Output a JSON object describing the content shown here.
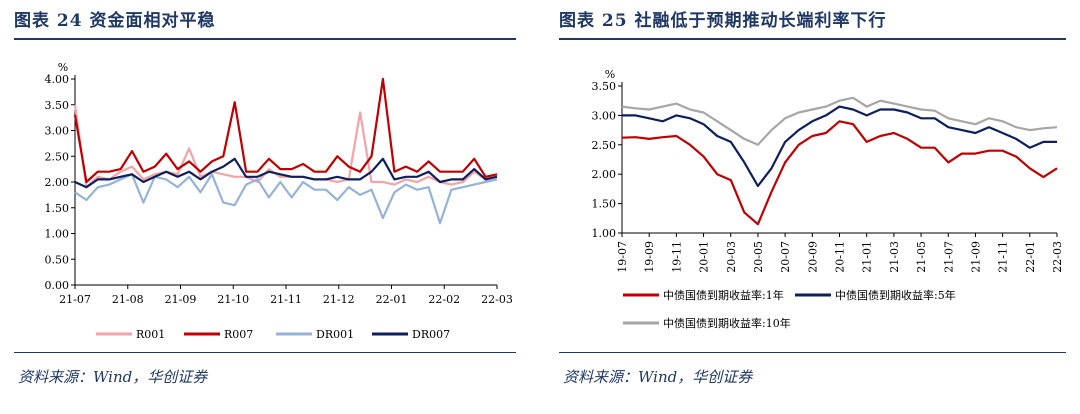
{
  "panels": {
    "left": {
      "title": "图表 24   资金面相对平稳",
      "source": "资料来源：Wind，华创证券"
    },
    "right": {
      "title": "图表 25   社融低于预期推动长端利率下行",
      "source": "资料来源：Wind，华创证券"
    }
  },
  "chart_data": [
    {
      "type": "line",
      "title": "资金面相对平稳",
      "ylabel": "%",
      "ylim": [
        0,
        4
      ],
      "yticks": [
        "0.00",
        "0.50",
        "1.00",
        "1.50",
        "2.00",
        "2.50",
        "3.00",
        "3.50",
        "4.00"
      ],
      "xticks": [
        "21-07",
        "21-08",
        "21-09",
        "21-10",
        "21-11",
        "21-12",
        "22-01",
        "22-02",
        "22-03"
      ],
      "x": [
        "2021-07-01",
        "2021-07-08",
        "2021-07-15",
        "2021-07-22",
        "2021-07-29",
        "2021-08-05",
        "2021-08-12",
        "2021-08-19",
        "2021-08-26",
        "2021-09-02",
        "2021-09-09",
        "2021-09-16",
        "2021-09-23",
        "2021-09-30",
        "2021-10-08",
        "2021-10-15",
        "2021-10-22",
        "2021-10-29",
        "2021-11-05",
        "2021-11-12",
        "2021-11-19",
        "2021-11-26",
        "2021-12-03",
        "2021-12-10",
        "2021-12-17",
        "2021-12-24",
        "2021-12-31",
        "2022-01-07",
        "2022-01-14",
        "2022-01-21",
        "2022-01-28",
        "2022-02-04",
        "2022-02-11",
        "2022-02-18",
        "2022-02-25",
        "2022-03-04",
        "2022-03-11",
        "2022-03-18"
      ],
      "legend_position": "bottom",
      "grid": false,
      "series": [
        {
          "name": "R001",
          "color": "#f4a3a6",
          "values": [
            3.5,
            1.9,
            2.1,
            2.05,
            2.2,
            2.3,
            2.05,
            2.15,
            2.2,
            2.15,
            2.65,
            2.1,
            2.2,
            2.15,
            2.1,
            2.1,
            2.0,
            2.25,
            2.1,
            2.1,
            2.1,
            2.05,
            2.05,
            2.0,
            2.05,
            3.35,
            2.0,
            2.0,
            1.95,
            2.05,
            2.0,
            2.1,
            2.0,
            1.95,
            2.0,
            2.2,
            2.05,
            2.15
          ]
        },
        {
          "name": "R007",
          "color": "#c00000",
          "values": [
            3.3,
            2.0,
            2.2,
            2.2,
            2.25,
            2.6,
            2.2,
            2.3,
            2.55,
            2.25,
            2.4,
            2.2,
            2.4,
            2.5,
            3.55,
            2.2,
            2.2,
            2.45,
            2.25,
            2.25,
            2.35,
            2.2,
            2.2,
            2.5,
            2.3,
            2.2,
            2.5,
            4.0,
            2.2,
            2.3,
            2.2,
            2.4,
            2.2,
            2.2,
            2.2,
            2.45,
            2.1,
            2.15
          ]
        },
        {
          "name": "DR001",
          "color": "#95b3d7",
          "values": [
            1.8,
            1.65,
            1.9,
            1.95,
            2.05,
            2.15,
            1.6,
            2.1,
            2.05,
            1.9,
            2.1,
            1.8,
            2.15,
            1.6,
            1.55,
            1.95,
            2.05,
            1.7,
            2.0,
            1.7,
            2.0,
            1.85,
            1.85,
            1.65,
            1.9,
            1.75,
            1.85,
            1.3,
            1.8,
            1.95,
            1.85,
            1.9,
            1.2,
            1.85,
            1.9,
            1.95,
            2.0,
            2.05
          ]
        },
        {
          "name": "DR007",
          "color": "#0d1f5c",
          "values": [
            2.0,
            1.9,
            2.05,
            2.05,
            2.1,
            2.15,
            2.0,
            2.1,
            2.2,
            2.1,
            2.2,
            2.05,
            2.2,
            2.3,
            2.45,
            2.1,
            2.1,
            2.2,
            2.15,
            2.1,
            2.1,
            2.05,
            2.05,
            2.1,
            2.05,
            2.05,
            2.2,
            2.45,
            2.05,
            2.1,
            2.1,
            2.2,
            2.0,
            2.05,
            2.05,
            2.25,
            2.05,
            2.1
          ]
        }
      ]
    },
    {
      "type": "line",
      "title": "社融低于预期推动长端利率下行",
      "ylabel": "%",
      "ylim": [
        1,
        3.5
      ],
      "yticks": [
        "1.00",
        "1.50",
        "2.00",
        "2.50",
        "3.00",
        "3.50"
      ],
      "xticks": [
        "19-07",
        "19-09",
        "19-11",
        "20-01",
        "20-03",
        "20-05",
        "20-07",
        "20-09",
        "20-11",
        "21-01",
        "21-03",
        "21-05",
        "21-07",
        "21-09",
        "21-11",
        "22-01",
        "22-03"
      ],
      "x": [
        "2019-07",
        "2019-08",
        "2019-09",
        "2019-10",
        "2019-11",
        "2019-12",
        "2020-01",
        "2020-02",
        "2020-03",
        "2020-04",
        "2020-05",
        "2020-06",
        "2020-07",
        "2020-08",
        "2020-09",
        "2020-10",
        "2020-11",
        "2020-12",
        "2021-01",
        "2021-02",
        "2021-03",
        "2021-04",
        "2021-05",
        "2021-06",
        "2021-07",
        "2021-08",
        "2021-09",
        "2021-10",
        "2021-11",
        "2021-12",
        "2022-01",
        "2022-02",
        "2022-03"
      ],
      "legend_position": "bottom",
      "grid": false,
      "series": [
        {
          "name": "中债国债到期收益率:1年",
          "color": "#c00000",
          "values": [
            2.62,
            2.63,
            2.6,
            2.63,
            2.65,
            2.5,
            2.3,
            2.0,
            1.9,
            1.35,
            1.15,
            1.7,
            2.2,
            2.5,
            2.65,
            2.7,
            2.9,
            2.85,
            2.55,
            2.65,
            2.7,
            2.6,
            2.45,
            2.45,
            2.2,
            2.35,
            2.35,
            2.4,
            2.4,
            2.3,
            2.1,
            1.95,
            2.1
          ]
        },
        {
          "name": "中债国债到期收益率:5年",
          "color": "#0d1f5c",
          "values": [
            3.0,
            3.0,
            2.95,
            2.9,
            3.0,
            2.95,
            2.85,
            2.65,
            2.55,
            2.2,
            1.8,
            2.1,
            2.55,
            2.75,
            2.9,
            3.0,
            3.15,
            3.1,
            3.0,
            3.1,
            3.1,
            3.05,
            2.95,
            2.95,
            2.8,
            2.75,
            2.7,
            2.8,
            2.7,
            2.6,
            2.45,
            2.55,
            2.55
          ]
        },
        {
          "name": "中债国债到期收益率:10年",
          "color": "#a6a6a6",
          "values": [
            3.15,
            3.12,
            3.1,
            3.15,
            3.2,
            3.1,
            3.05,
            2.9,
            2.75,
            2.6,
            2.5,
            2.75,
            2.95,
            3.05,
            3.1,
            3.15,
            3.25,
            3.3,
            3.15,
            3.25,
            3.2,
            3.15,
            3.1,
            3.08,
            2.95,
            2.9,
            2.85,
            2.95,
            2.9,
            2.8,
            2.75,
            2.78,
            2.8
          ]
        }
      ]
    }
  ]
}
